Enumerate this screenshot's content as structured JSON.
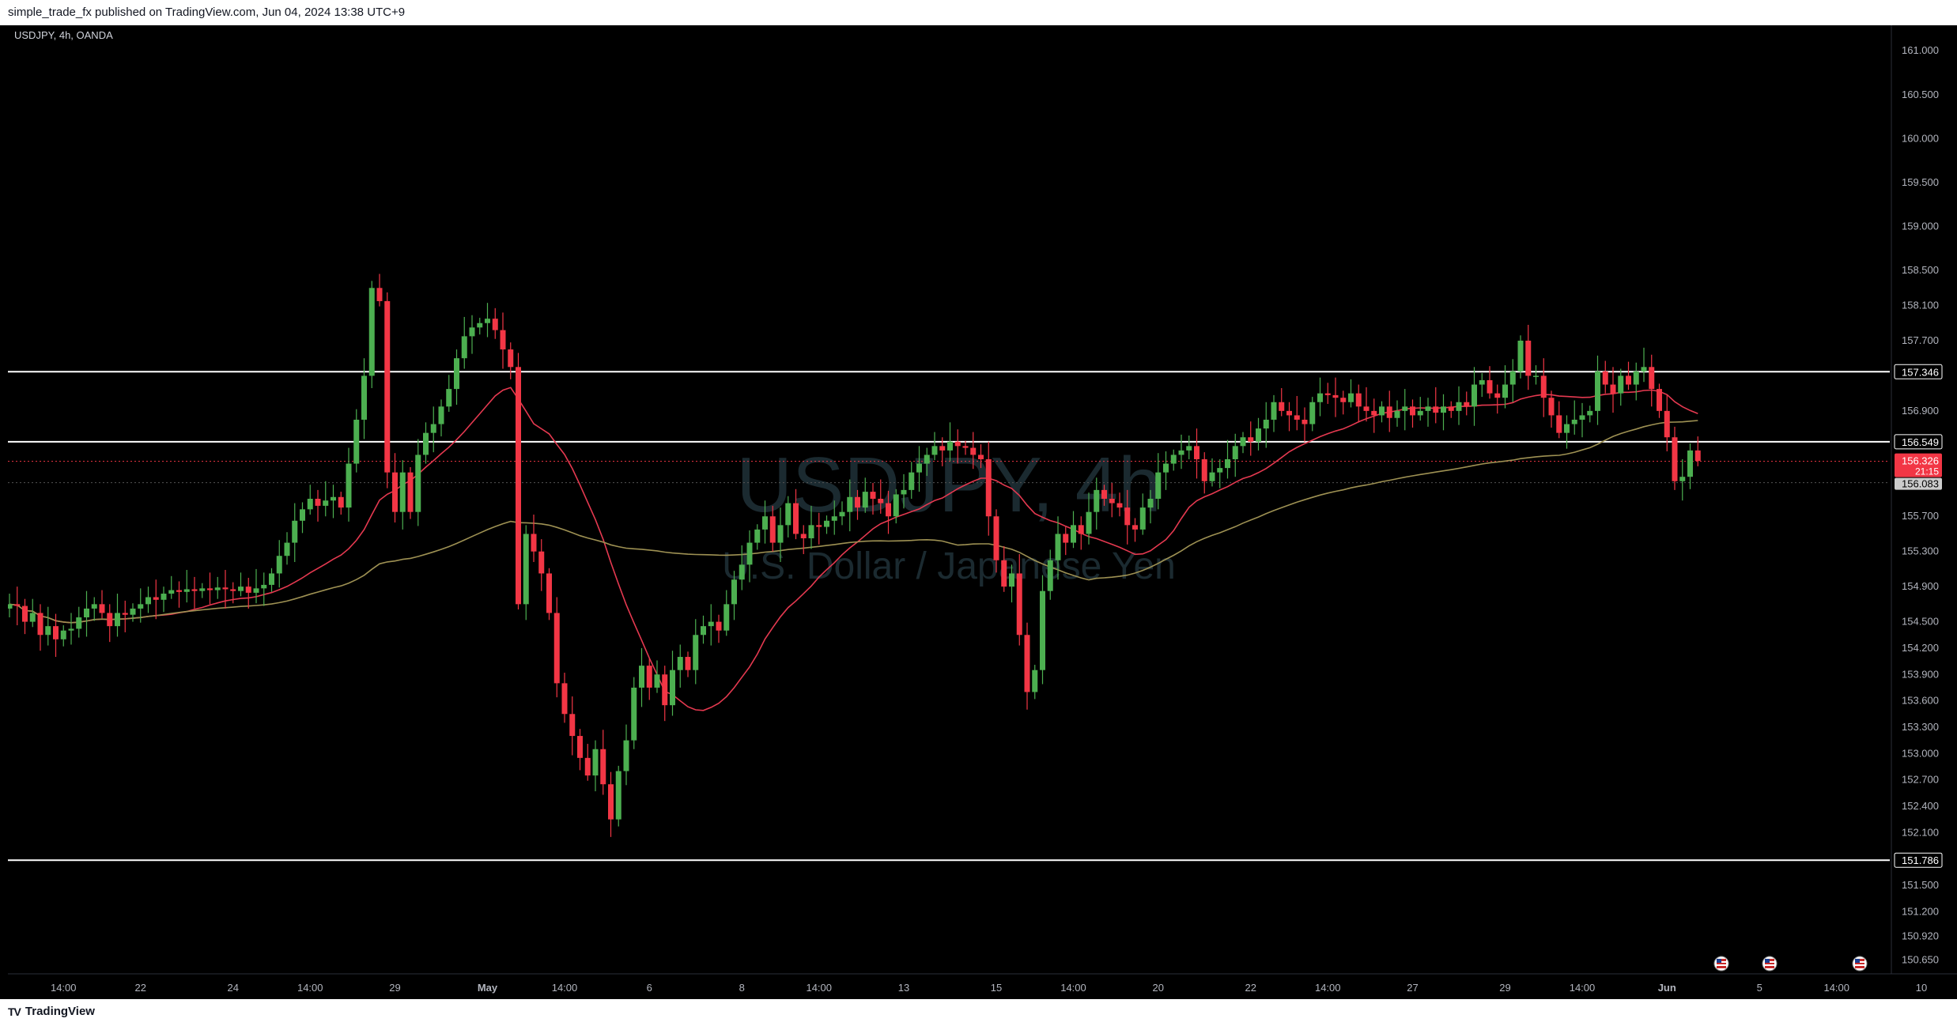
{
  "header": {
    "published_line": "simple_trade_fx published on TradingView.com, Jun 04, 2024 13:38 UTC+9"
  },
  "footer": {
    "brand": "TradingView",
    "brand_logo_text": "TV"
  },
  "chart_data": {
    "type": "candlestick",
    "symbol_label": "USDJPY, 4h, OANDA",
    "watermark_symbol": "USDJPY, 4h",
    "watermark_name": "U.S. Dollar / Japanese Yen",
    "y_range": [
      150.6,
      161.2
    ],
    "y_ticks": [
      "161.000",
      "160.500",
      "160.000",
      "159.500",
      "159.000",
      "158.500",
      "158.100",
      "157.700",
      "156.900",
      "155.700",
      "155.300",
      "154.900",
      "154.500",
      "154.200",
      "153.900",
      "153.600",
      "153.300",
      "153.000",
      "152.700",
      "152.400",
      "152.100",
      "151.500",
      "151.200",
      "150.920",
      "150.650"
    ],
    "x_ticks": [
      {
        "label": "14:00",
        "index": 7
      },
      {
        "label": "22",
        "index": 17
      },
      {
        "label": "24",
        "index": 29
      },
      {
        "label": "14:00",
        "index": 39
      },
      {
        "label": "29",
        "index": 50
      },
      {
        "label": "May",
        "index": 62
      },
      {
        "label": "14:00",
        "index": 72
      },
      {
        "label": "6",
        "index": 83
      },
      {
        "label": "8",
        "index": 95
      },
      {
        "label": "14:00",
        "index": 105
      },
      {
        "label": "13",
        "index": 116
      },
      {
        "label": "15",
        "index": 128
      },
      {
        "label": "14:00",
        "index": 138
      },
      {
        "label": "20",
        "index": 149
      },
      {
        "label": "22",
        "index": 161
      },
      {
        "label": "14:00",
        "index": 171
      },
      {
        "label": "27",
        "index": 182
      },
      {
        "label": "29",
        "index": 194
      },
      {
        "label": "14:00",
        "index": 204
      },
      {
        "label": "Jun",
        "index": 215
      },
      {
        "label": "5",
        "index": 227
      },
      {
        "label": "14:00",
        "index": 237
      },
      {
        "label": "10",
        "index": 248
      }
    ],
    "horizontal_levels": [
      {
        "value": 157.346,
        "label": "157.346"
      },
      {
        "value": 156.549,
        "label": "156.549"
      },
      {
        "value": 151.786,
        "label": "151.786"
      }
    ],
    "last_price": {
      "value": 156.326,
      "label": "156.326",
      "countdown": "21:15"
    },
    "ref_price": {
      "value": 156.083,
      "label": "156.083"
    },
    "colors": {
      "up": "#4caf50",
      "down": "#f23645",
      "ma_fast": "#e53950",
      "ma_slow": "#9e9153",
      "level": "#ffffff",
      "price_tag": "#f23645",
      "ref_tag": "#cccccc"
    },
    "closes": [
      154.7,
      154.68,
      154.5,
      154.6,
      154.35,
      154.45,
      154.3,
      154.4,
      154.42,
      154.55,
      154.65,
      154.7,
      154.6,
      154.45,
      154.6,
      154.58,
      154.65,
      154.7,
      154.78,
      154.75,
      154.82,
      154.86,
      154.84,
      154.87,
      154.85,
      154.88,
      154.86,
      154.89,
      154.87,
      154.85,
      154.9,
      154.83,
      154.88,
      154.92,
      155.05,
      155.25,
      155.4,
      155.65,
      155.78,
      155.9,
      155.82,
      155.88,
      155.92,
      155.8,
      156.3,
      156.8,
      157.3,
      158.3,
      158.15,
      156.2,
      155.75,
      156.2,
      155.75,
      156.4,
      156.65,
      156.75,
      156.95,
      157.15,
      157.5,
      157.75,
      157.85,
      157.9,
      157.95,
      157.82,
      157.6,
      157.4,
      154.7,
      155.5,
      155.3,
      155.05,
      154.6,
      153.8,
      153.45,
      153.2,
      152.95,
      152.75,
      153.05,
      152.65,
      152.25,
      152.8,
      153.15,
      153.75,
      154.0,
      153.75,
      153.9,
      153.55,
      153.95,
      154.1,
      153.95,
      154.35,
      154.45,
      154.5,
      154.4,
      154.7,
      154.98,
      155.15,
      155.4,
      155.55,
      155.7,
      155.4,
      155.6,
      155.85,
      155.5,
      155.45,
      155.6,
      155.58,
      155.65,
      155.7,
      155.75,
      155.92,
      155.8,
      155.98,
      155.9,
      155.85,
      155.7,
      155.95,
      156.0,
      156.2,
      156.3,
      156.4,
      156.5,
      156.45,
      156.55,
      156.5,
      156.48,
      156.4,
      156.35,
      155.7,
      155.2,
      154.9,
      155.05,
      154.35,
      153.7,
      153.95,
      154.85,
      155.2,
      155.5,
      155.4,
      155.6,
      155.5,
      155.75,
      156.0,
      155.9,
      155.85,
      155.8,
      155.6,
      155.55,
      155.8,
      155.9,
      156.2,
      156.3,
      156.4,
      156.45,
      156.5,
      156.35,
      156.1,
      156.2,
      156.25,
      156.35,
      156.5,
      156.6,
      156.55,
      156.7,
      156.8,
      157.0,
      156.9,
      156.85,
      156.8,
      156.75,
      157.0,
      157.1,
      157.08,
      157.05,
      157.0,
      157.1,
      156.95,
      156.9,
      156.85,
      156.95,
      156.82,
      156.9,
      156.95,
      156.85,
      156.9,
      156.95,
      156.88,
      156.95,
      156.9,
      157.0,
      156.95,
      157.2,
      157.25,
      157.1,
      157.05,
      157.2,
      157.35,
      157.7,
      157.3,
      157.3,
      157.05,
      156.85,
      156.65,
      156.75,
      156.8,
      156.85,
      156.9,
      157.35,
      157.2,
      157.1,
      157.3,
      157.2,
      157.35,
      157.4,
      157.15,
      156.9,
      156.6,
      156.1,
      156.15,
      156.45,
      156.33
    ]
  }
}
